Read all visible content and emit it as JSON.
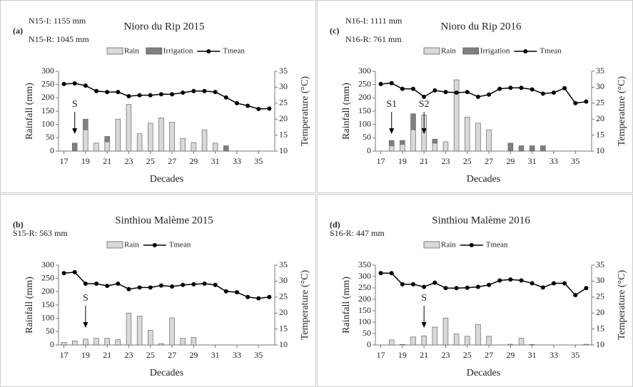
{
  "chart_data": [
    {
      "type": "bar-line",
      "panel_label": "(a)",
      "title": "Nioro du Rip 2015",
      "notes": [
        "N15-I: 1155 mm",
        "N15-R: 1045 mm"
      ],
      "x_label": "Decades",
      "y_label": "Rainfall (mm)",
      "y2_label": "Temperature (°C)",
      "x": [
        17,
        18,
        19,
        20,
        21,
        22,
        23,
        24,
        25,
        26,
        27,
        28,
        29,
        30,
        31,
        32,
        33,
        34,
        35,
        36
      ],
      "xlim": [
        16.5,
        36.5
      ],
      "xticks": [
        17,
        19,
        21,
        23,
        25,
        27,
        29,
        31,
        33,
        35
      ],
      "ylim": [
        0,
        300
      ],
      "yticks": [
        0,
        50,
        100,
        150,
        200,
        250,
        300
      ],
      "y2lim": [
        10,
        35
      ],
      "y2ticks": [
        10,
        15,
        20,
        25,
        30,
        35
      ],
      "series": [
        {
          "name": "Rain",
          "type": "bar",
          "color": "#d9d9d9",
          "values": [
            0,
            0,
            80,
            30,
            35,
            120,
            175,
            65,
            105,
            125,
            108,
            48,
            32,
            80,
            30,
            0,
            0,
            0,
            0,
            0
          ]
        },
        {
          "name": "Irrigation",
          "type": "bar",
          "color": "#7f7f7f",
          "values": [
            0,
            30,
            40,
            0,
            20,
            0,
            0,
            0,
            0,
            0,
            0,
            0,
            0,
            0,
            0,
            20,
            0,
            0,
            0,
            0
          ]
        },
        {
          "name": "Tmean",
          "type": "line",
          "axis": "y2",
          "color": "#000000",
          "values": [
            31,
            31.2,
            30.5,
            28.8,
            28.5,
            28.5,
            27.2,
            27.5,
            27.5,
            27.8,
            27.8,
            28.3,
            28.8,
            28.8,
            28.5,
            26.8,
            25,
            24.2,
            23.2,
            23.3
          ]
        }
      ],
      "annotations": [
        {
          "text": "S",
          "x": 18
        }
      ]
    },
    {
      "type": "bar-line",
      "panel_label": "(c)",
      "title": "Nioro du Rip 2016",
      "notes": [
        "N16-I: 1111 mm",
        "N16-R: 761 mm"
      ],
      "x_label": "Decades",
      "y_label": "Rainfall (mm)",
      "y2_label": "Temperature (°C)",
      "x": [
        17,
        18,
        19,
        20,
        21,
        22,
        23,
        24,
        25,
        26,
        27,
        28,
        29,
        30,
        31,
        32,
        33,
        34,
        35,
        36
      ],
      "xlim": [
        16.5,
        36.5
      ],
      "xticks": [
        17,
        19,
        21,
        23,
        25,
        27,
        29,
        31,
        33,
        35
      ],
      "ylim": [
        0,
        300
      ],
      "yticks": [
        0,
        50,
        100,
        150,
        200,
        250,
        300
      ],
      "y2lim": [
        10,
        35
      ],
      "y2ticks": [
        10,
        15,
        20,
        25,
        30,
        35
      ],
      "series": [
        {
          "name": "Rain",
          "type": "bar",
          "color": "#d9d9d9",
          "values": [
            0,
            20,
            25,
            80,
            135,
            30,
            35,
            268,
            128,
            105,
            80,
            0,
            0,
            0,
            0,
            0,
            0,
            0,
            0,
            0
          ]
        },
        {
          "name": "Irrigation",
          "type": "bar",
          "color": "#7f7f7f",
          "values": [
            0,
            20,
            15,
            60,
            0,
            15,
            0,
            0,
            0,
            0,
            0,
            0,
            30,
            20,
            20,
            20,
            0,
            0,
            0,
            0
          ]
        },
        {
          "name": "Tmean",
          "type": "line",
          "axis": "y2",
          "color": "#000000",
          "values": [
            31,
            31.3,
            29.5,
            29.5,
            27,
            29,
            28.5,
            28.3,
            28.5,
            27,
            27.7,
            29.5,
            29.8,
            29.8,
            29.3,
            28,
            28.3,
            29.7,
            25,
            25.5
          ]
        }
      ],
      "annotations": [
        {
          "text": "S1",
          "x": 18
        },
        {
          "text": "S2",
          "x": 21
        }
      ]
    },
    {
      "type": "bar-line",
      "panel_label": "(b)",
      "title": "Sinthiou Malème 2015",
      "notes": [
        "S15-R: 563 mm"
      ],
      "x_label": "Decades",
      "y_label": "Rainfall (mm)",
      "y2_label": "Temperature (°C)",
      "x": [
        17,
        18,
        19,
        20,
        21,
        22,
        23,
        24,
        25,
        26,
        27,
        28,
        29,
        30,
        31,
        32,
        33,
        34,
        35,
        36
      ],
      "xlim": [
        16.5,
        36.5
      ],
      "xticks": [
        17,
        19,
        21,
        23,
        25,
        27,
        29,
        31,
        33,
        35
      ],
      "ylim": [
        0,
        300
      ],
      "yticks": [
        0,
        50,
        100,
        150,
        200,
        250,
        300
      ],
      "y2lim": [
        10,
        35
      ],
      "y2ticks": [
        10,
        15,
        20,
        25,
        30,
        35
      ],
      "series": [
        {
          "name": "Rain",
          "type": "bar",
          "color": "#d9d9d9",
          "values": [
            10,
            15,
            22,
            25,
            25,
            20,
            120,
            108,
            55,
            5,
            102,
            25,
            28,
            0,
            0,
            0,
            0,
            0,
            0,
            0
          ]
        },
        {
          "name": "Tmean",
          "type": "line",
          "axis": "y2",
          "color": "#000000",
          "values": [
            32.5,
            32.8,
            29.2,
            29.2,
            28.5,
            29.2,
            27.5,
            28,
            28,
            28.6,
            28.3,
            28.8,
            29,
            29.2,
            28.8,
            26.8,
            26.5,
            25,
            24.6,
            25
          ]
        }
      ],
      "annotations": [
        {
          "text": "S",
          "x": 19
        }
      ]
    },
    {
      "type": "bar-line",
      "panel_label": "(d)",
      "title": "Sinthiou Malème 2016",
      "notes": [
        "S16-R: 447 mm"
      ],
      "x_label": "Decades",
      "y_label": "Rainfall (mm)",
      "y2_label": "Temperature (°C)",
      "x": [
        17,
        18,
        19,
        20,
        21,
        22,
        23,
        24,
        25,
        26,
        27,
        28,
        29,
        30,
        31,
        32,
        33,
        34,
        35,
        36
      ],
      "xlim": [
        16.5,
        36.5
      ],
      "xticks": [
        17,
        19,
        21,
        23,
        25,
        27,
        29,
        31,
        33,
        35
      ],
      "ylim": [
        0,
        350
      ],
      "yticks": [
        0,
        50,
        100,
        150,
        200,
        250,
        300,
        350
      ],
      "y2lim": [
        10,
        35
      ],
      "y2ticks": [
        10,
        15,
        20,
        25,
        30,
        35
      ],
      "series": [
        {
          "name": "Rain",
          "type": "bar",
          "color": "#d9d9d9",
          "values": [
            0,
            22,
            2,
            35,
            40,
            78,
            118,
            48,
            38,
            90,
            38,
            0,
            3,
            30,
            2,
            0,
            0,
            0,
            0,
            3
          ]
        },
        {
          "name": "Tmean",
          "type": "line",
          "axis": "y2",
          "color": "#000000",
          "values": [
            32.5,
            32.5,
            29,
            29,
            28.2,
            29.5,
            27.8,
            27.8,
            27.9,
            28.2,
            28.8,
            30.2,
            30.5,
            30.2,
            29.3,
            28,
            29.3,
            29.3,
            25.6,
            27.8
          ]
        }
      ],
      "annotations": [
        {
          "text": "S",
          "x": 21
        }
      ]
    }
  ]
}
